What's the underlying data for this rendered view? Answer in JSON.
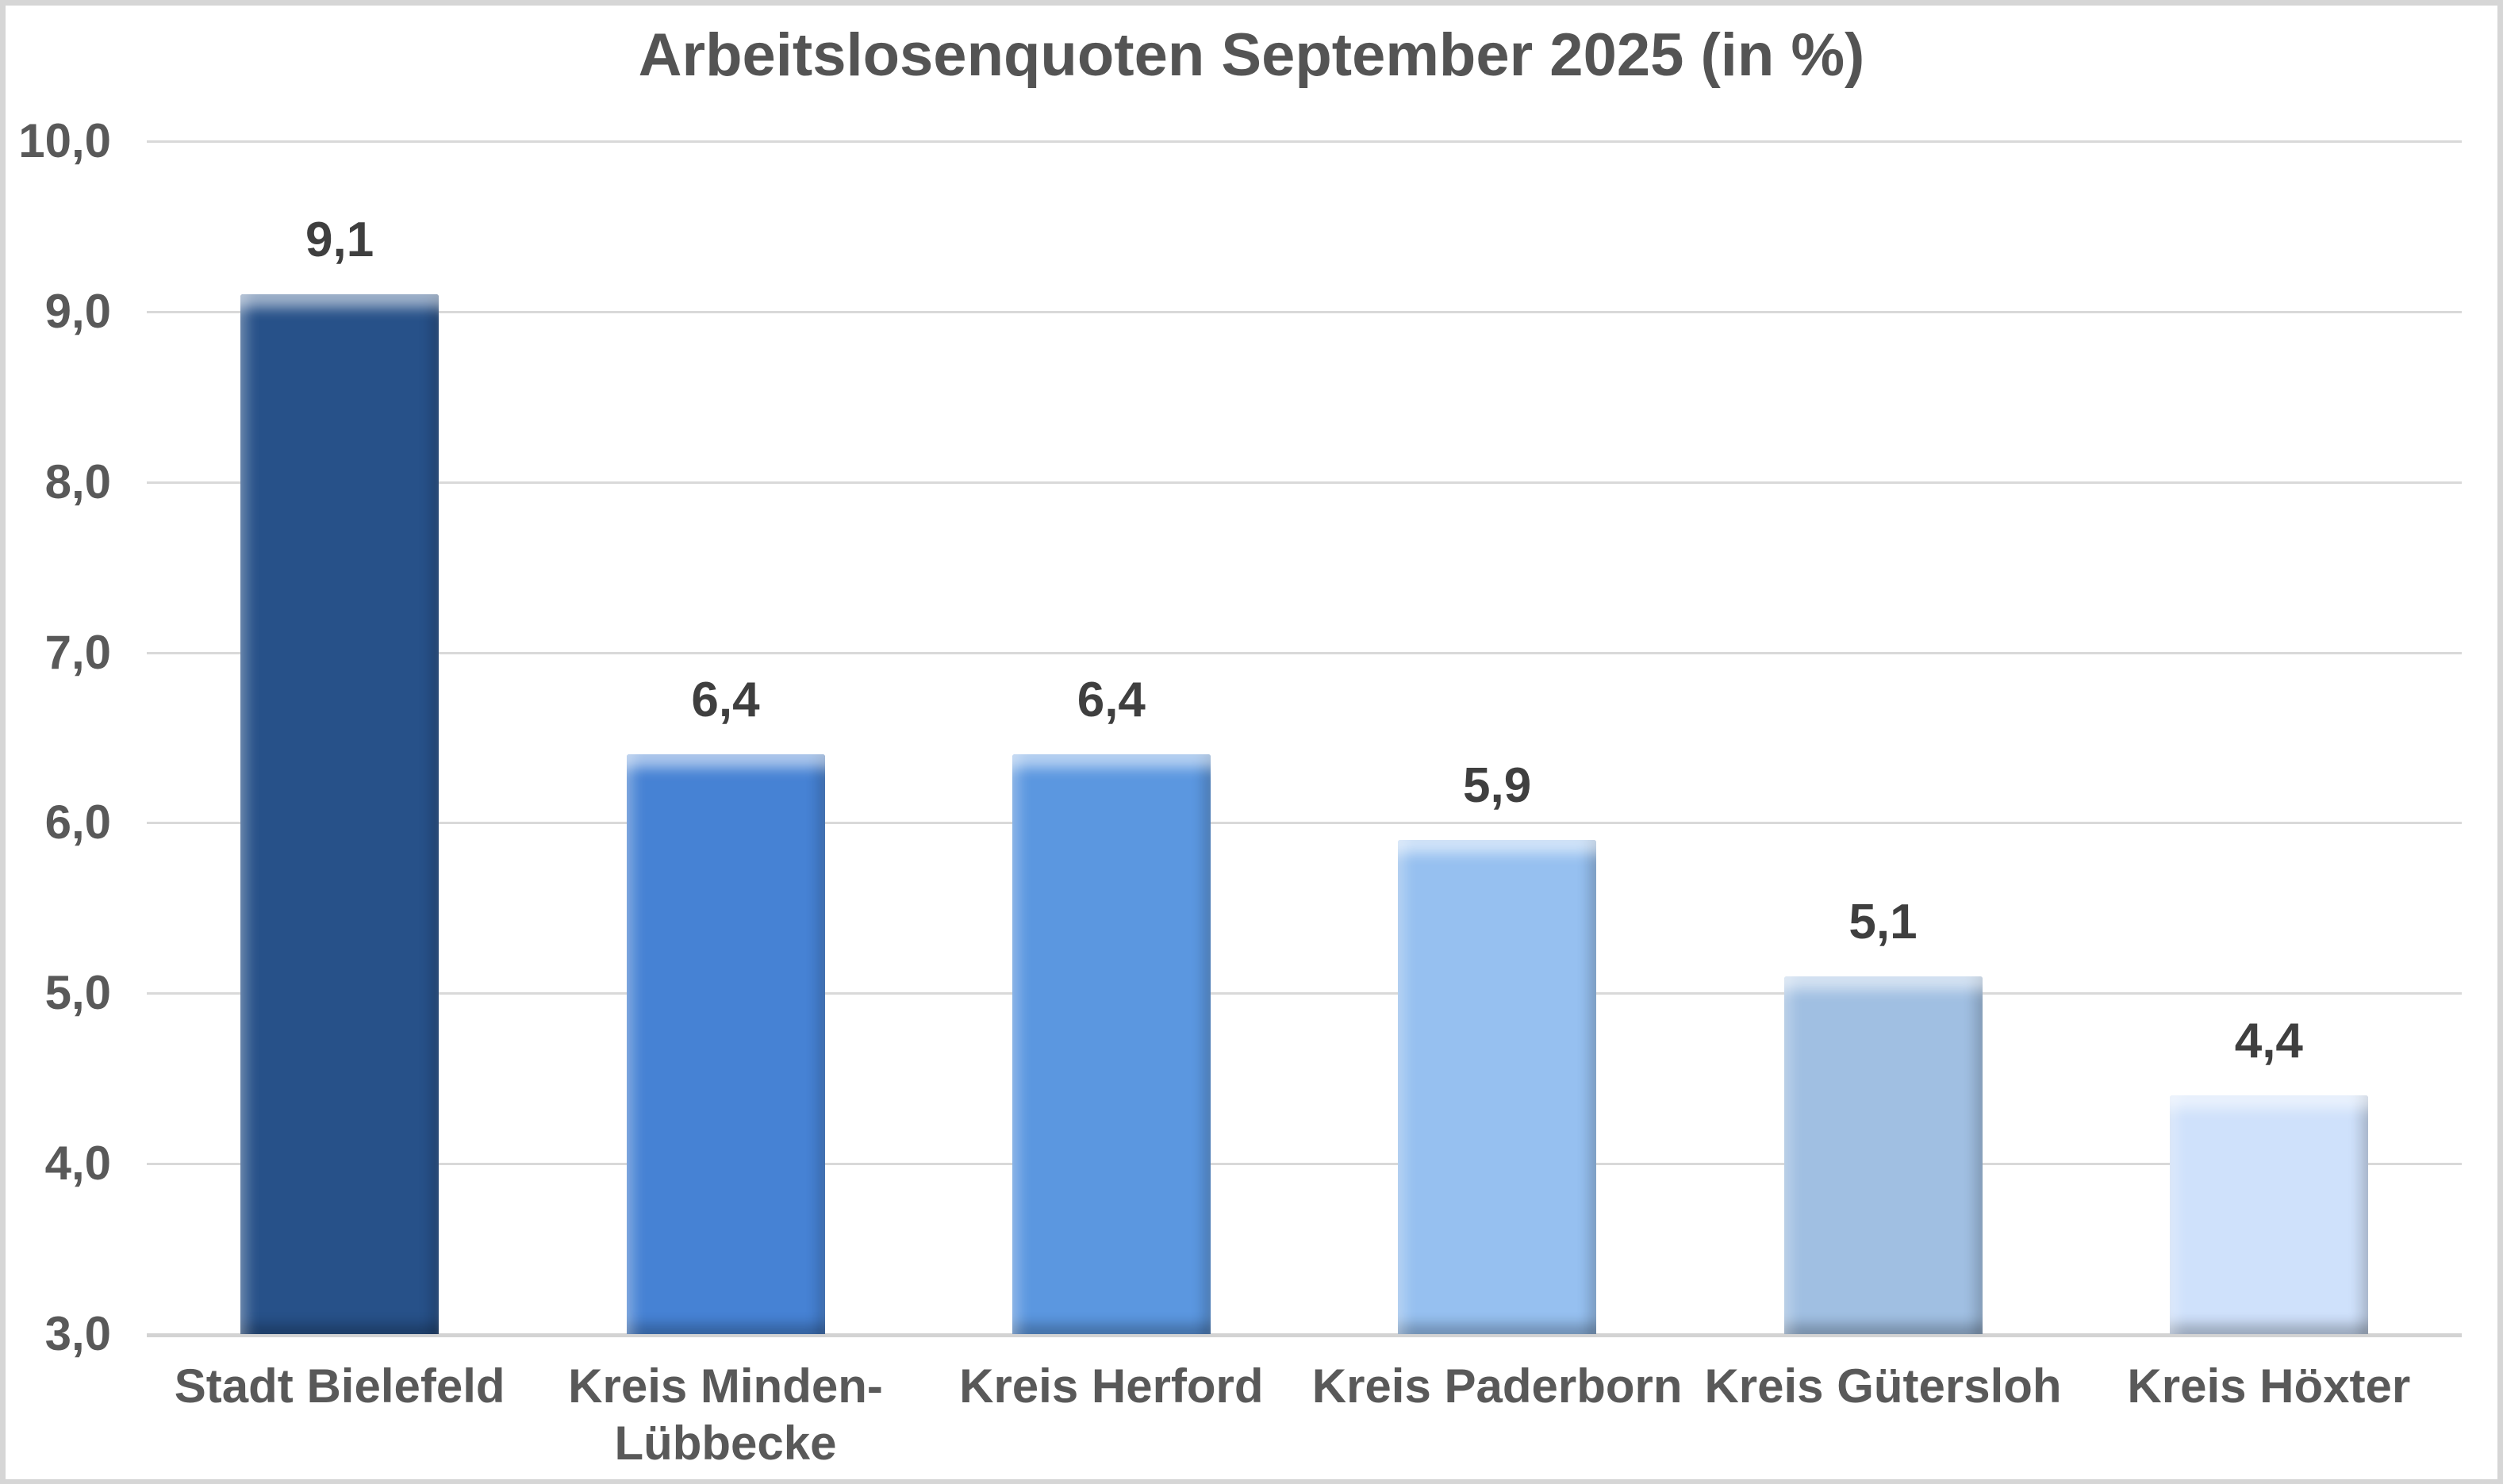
{
  "chart": {
    "background": "#ffffff",
    "frame_color": "#d6d6d6",
    "grid_color": "#d9d9d9",
    "axis_line_color": "#d3d3d3",
    "title_color": "#545454",
    "axis_text_color": "#595959",
    "value_label_color": "#3f3f3f"
  },
  "chart_data": {
    "type": "bar",
    "title": "Arbeitslosenquoten September 2025 (in %)",
    "categories": [
      "Stadt Bielefeld",
      "Kreis Minden-Lübbecke",
      "Kreis Herford",
      "Kreis Paderborn",
      "Kreis Gütersloh",
      "Kreis Höxter"
    ],
    "values": [
      9.1,
      6.4,
      6.4,
      5.9,
      5.1,
      4.4
    ],
    "value_labels": [
      "9,1",
      "6,4",
      "6,4",
      "5,9",
      "5,1",
      "4,4"
    ],
    "bar_colors": [
      "#275189",
      "#4682d4",
      "#5b97e0",
      "#96c0f0",
      "#a0bfe2",
      "#cfe1fb"
    ],
    "ylim": [
      3,
      10
    ],
    "y_tick_step": 1,
    "y_tick_labels": [
      "10,0",
      "9,0",
      "8,0",
      "7,0",
      "6,0",
      "5,0",
      "4,0",
      "3,0"
    ],
    "xlabel": "",
    "ylabel": "",
    "grid": true,
    "legend": false
  }
}
